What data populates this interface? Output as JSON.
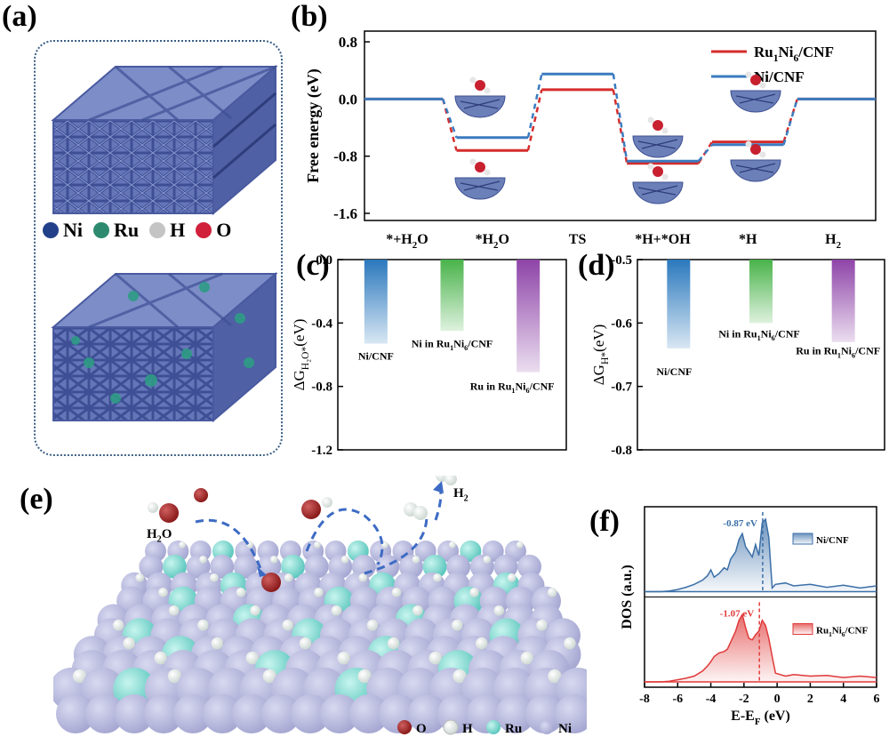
{
  "panel_labels": {
    "a": "(a)",
    "b": "(b)",
    "c": "(c)",
    "d": "(d)",
    "e": "(e)",
    "f": "(f)"
  },
  "panel_a": {
    "legend": [
      {
        "label": "Ni",
        "color": "#22408a"
      },
      {
        "label": "Ru",
        "color": "#2e8a6e"
      },
      {
        "label": "H",
        "color": "#c4c4c4"
      },
      {
        "label": "O",
        "color": "#d0203a"
      }
    ],
    "frame_color": "#5b6fb0",
    "ru_color": "#2e9c85"
  },
  "panel_e": {
    "labels": {
      "h2o": "H",
      "h2o_sub": "2",
      "h2o_tail": "O",
      "h2": "H",
      "h2_sub": "2"
    },
    "legend": [
      {
        "label": "O",
        "color": "#8b1a1a"
      },
      {
        "label": "H",
        "color": "#e8f0ec"
      },
      {
        "label": "Ru",
        "color": "#5ec8bf"
      },
      {
        "label": "Ni",
        "color": "#a7a9d3"
      }
    ]
  },
  "chart_data": [
    {
      "id": "b",
      "type": "line",
      "title": "",
      "ylabel": "Free energy (eV)",
      "xlabel": "",
      "ylim": [
        -1.7,
        0.95
      ],
      "yticks": [
        "0.8",
        "0.0",
        "-0.8",
        "-1.6"
      ],
      "ytick_values": [
        0.8,
        0.0,
        -0.8,
        -1.6
      ],
      "categories": [
        "*+H₂O",
        "*H₂O",
        "TS",
        "*H+*OH",
        "*H",
        "H₂"
      ],
      "category_parts": [
        {
          "t": "*+H",
          "s": "2",
          "u": "O"
        },
        {
          "t": "*H",
          "s": "2",
          "u": "O"
        },
        {
          "t": "TS",
          "s": "",
          "u": ""
        },
        {
          "t": "*H+*OH",
          "s": "",
          "u": ""
        },
        {
          "t": "*H",
          "s": "",
          "u": ""
        },
        {
          "t": "H",
          "s": "2",
          "u": ""
        }
      ],
      "series": [
        {
          "name": "Ru₁Ni₆/CNF",
          "name_parts": {
            "a": "Ru",
            "s1": "1",
            "b": "Ni",
            "s2": "6",
            "c": "/CNF"
          },
          "color": "#d62c2c",
          "values": [
            0.0,
            -0.72,
            0.13,
            -0.9,
            -0.6,
            0.0
          ]
        },
        {
          "name": "Ni/CNF",
          "color": "#3b7bbf",
          "values": [
            0.0,
            -0.54,
            0.35,
            -0.87,
            -0.64,
            0.0
          ]
        }
      ],
      "legend_position": "top-right"
    },
    {
      "id": "c",
      "type": "bar",
      "ylabel": "ΔG_H2O*(eV)",
      "ylabel_parts": {
        "a": "ΔG",
        "s": "H₂O*",
        "b": "(eV)"
      },
      "ylim": [
        -1.2,
        0.0
      ],
      "yticks": [
        "0.0",
        "-0.4",
        "-0.8",
        "-1.2"
      ],
      "ytick_values": [
        0.0,
        -0.4,
        -0.8,
        -1.2
      ],
      "categories": [
        "Ni/CNF",
        "Ni in Ru₁Ni₆/CNF",
        "Ru in Ru₁Ni₆/CNF"
      ],
      "category_parts": [
        {
          "a": "Ni/CNF",
          "s1": "",
          "b": "",
          "s2": "",
          "c": ""
        },
        {
          "a": "Ni in Ru",
          "s1": "1",
          "b": "Ni",
          "s2": "6",
          "c": "/CNF"
        },
        {
          "a": "Ru in Ru",
          "s1": "1",
          "b": "Ni",
          "s2": "6",
          "c": "/CNF"
        }
      ],
      "values": [
        -0.53,
        -0.45,
        -0.71
      ],
      "colors": [
        "#2a78bd",
        "#49b34a",
        "#8e44a8"
      ]
    },
    {
      "id": "d",
      "type": "bar",
      "ylabel": "ΔG_H*(eV)",
      "ylabel_parts": {
        "a": "ΔG",
        "s": "H*",
        "b": "(eV)"
      },
      "ylim": [
        -0.8,
        -0.5
      ],
      "yticks": [
        "-0.5",
        "-0.6",
        "-0.7",
        "-0.8"
      ],
      "ytick_values": [
        -0.5,
        -0.6,
        -0.7,
        -0.8
      ],
      "categories": [
        "Ni/CNF",
        "Ni in Ru₁Ni₆/CNF",
        "Ru in Ru₁Ni₆/CNF"
      ],
      "category_parts": [
        {
          "a": "Ni/CNF",
          "s1": "",
          "b": "",
          "s2": "",
          "c": ""
        },
        {
          "a": "Ni in Ru",
          "s1": "1",
          "b": "Ni",
          "s2": "6",
          "c": "/CNF"
        },
        {
          "a": "Ru in Ru",
          "s1": "1",
          "b": "Ni",
          "s2": "6",
          "c": "/CNF"
        }
      ],
      "values": [
        -0.64,
        -0.6,
        -0.63
      ],
      "colors": [
        "#2a78bd",
        "#49b34a",
        "#8e44a8"
      ]
    },
    {
      "id": "f",
      "type": "area",
      "xlabel": "E-E_F (eV)",
      "xlabel_parts": {
        "a": "E-E",
        "s": "F",
        "b": " (eV)"
      },
      "ylabel": "DOS (a.u.)",
      "xlim": [
        -8,
        6
      ],
      "xticks": [
        "-8",
        "-6",
        "-4",
        "-2",
        "0",
        "2",
        "4",
        "6"
      ],
      "xtick_values": [
        -8,
        -6,
        -4,
        -2,
        0,
        2,
        4,
        6
      ],
      "series": [
        {
          "name": "Ni/CNF",
          "name_parts": {
            "a": "Ni/CNF",
            "s1": "",
            "b": "",
            "s2": "",
            "c": ""
          },
          "color": "#3b6fa8",
          "d_band_center": -0.87,
          "annotation": "-0.87 eV",
          "x": [
            -8,
            -7,
            -6.5,
            -6,
            -5.5,
            -5,
            -4.5,
            -4.2,
            -4,
            -3.8,
            -3.5,
            -3.2,
            -3,
            -2.8,
            -2.5,
            -2.3,
            -2.1,
            -1.9,
            -1.7,
            -1.5,
            -1.3,
            -1.1,
            -0.9,
            -0.7,
            -0.5,
            -0.3,
            -0.1,
            0.5,
            1,
            2,
            3,
            4,
            5,
            6
          ],
          "y": [
            0,
            0,
            0.01,
            0.03,
            0.06,
            0.1,
            0.16,
            0.22,
            0.3,
            0.2,
            0.25,
            0.33,
            0.3,
            0.45,
            0.55,
            0.72,
            0.8,
            0.62,
            0.55,
            0.48,
            0.65,
            0.5,
            0.95,
            1.0,
            0.75,
            0.05,
            0.1,
            0.12,
            0.08,
            0.1,
            0.06,
            0.09,
            0.05,
            0.08
          ]
        },
        {
          "name": "Ru₁Ni₆/CNF",
          "name_parts": {
            "a": "Ru",
            "s1": "1",
            "b": "Ni",
            "s2": "6",
            "c": "/CNF"
          },
          "color": "#e03a3a",
          "d_band_center": -1.07,
          "annotation": "-1.07 eV",
          "x": [
            -8,
            -7,
            -6.5,
            -6,
            -5.5,
            -5,
            -4.5,
            -4.2,
            -4,
            -3.8,
            -3.5,
            -3.2,
            -3,
            -2.8,
            -2.5,
            -2.3,
            -2.1,
            -1.9,
            -1.7,
            -1.5,
            -1.3,
            -1.1,
            -0.9,
            -0.7,
            -0.5,
            -0.3,
            -0.1,
            0.5,
            1,
            2,
            3,
            4,
            5,
            6
          ],
          "y": [
            0,
            0,
            0.01,
            0.03,
            0.05,
            0.08,
            0.15,
            0.22,
            0.28,
            0.35,
            0.4,
            0.42,
            0.45,
            0.55,
            0.7,
            0.85,
            0.93,
            0.75,
            0.6,
            0.58,
            0.65,
            0.7,
            0.85,
            0.78,
            0.6,
            0.35,
            0.12,
            0.08,
            0.1,
            0.08,
            0.09,
            0.06,
            0.08,
            0.06
          ]
        }
      ]
    }
  ]
}
